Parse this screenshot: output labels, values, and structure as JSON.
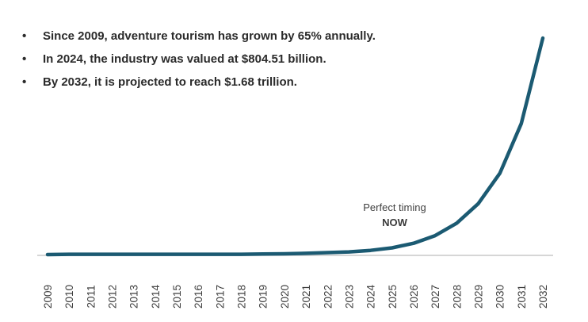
{
  "bullets": [
    "Since 2009, adventure tourism has grown by 65% annually.",
    "In 2024, the industry was valued at $804.51 billion.",
    "By 2032, it is projected to reach $1.68 trillion."
  ],
  "bullet_glyph": "•",
  "chart_data": {
    "type": "line",
    "title": "",
    "xlabel": "",
    "ylabel": "",
    "x": [
      "2009",
      "2010",
      "2011",
      "2012",
      "2013",
      "2014",
      "2015",
      "2016",
      "2017",
      "2018",
      "2019",
      "2020",
      "2021",
      "2022",
      "2023",
      "2024",
      "2025",
      "2026",
      "2027",
      "2028",
      "2029",
      "2030",
      "2031",
      "2032"
    ],
    "series": [
      {
        "values": [
          0.0,
          0.3,
          0.3,
          0.3,
          0.3,
          0.3,
          0.3,
          0.3,
          0.3,
          0.3,
          0.5,
          0.7,
          1.2,
          1.8,
          2.5,
          3.9,
          6.2,
          10.5,
          17.5,
          29,
          47,
          75,
          121,
          200
        ]
      }
    ],
    "ylim": [
      0,
      200
    ],
    "grid": false,
    "line_color": "#1b5a72",
    "axis_color": "#c8c8c8",
    "annotations": [
      {
        "text": "Perfect timing",
        "bold": false
      },
      {
        "text": "NOW",
        "bold": true
      }
    ]
  }
}
